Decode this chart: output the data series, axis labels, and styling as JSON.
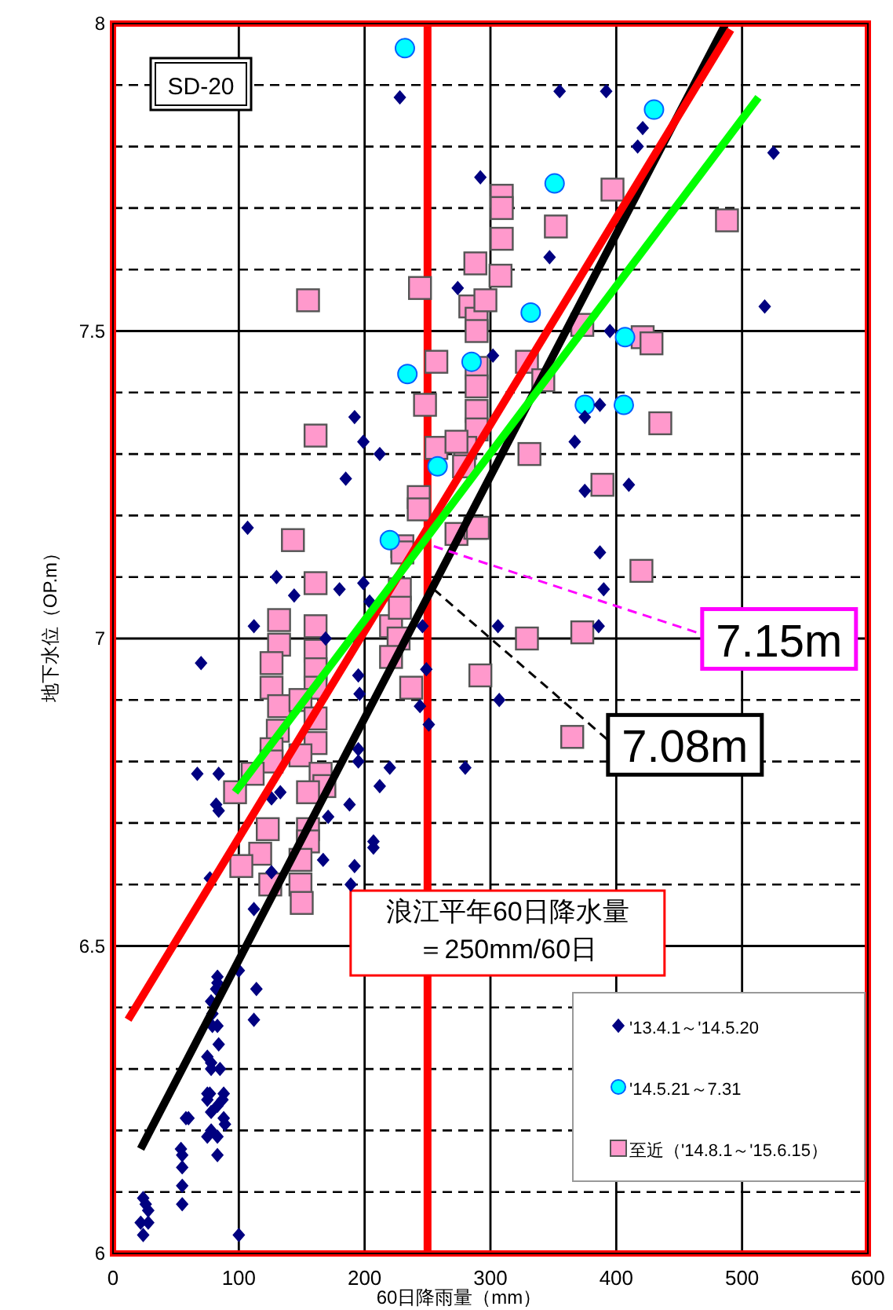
{
  "chart_data": {
    "type": "scatter",
    "title": "SD-20",
    "xlabel": "60日降雨量（mm）",
    "ylabel": "地下水位（OP.m）",
    "xlim": [
      0,
      600
    ],
    "ylim": [
      6.0,
      8.0
    ],
    "xticks": [
      0,
      100,
      200,
      300,
      400,
      500,
      600
    ],
    "yticks": [
      6.0,
      {
        "value": 6.1,
        "label": null
      },
      {
        "value": 6.2,
        "label": null
      },
      {
        "value": 6.3,
        "label": null
      },
      {
        "value": 6.4,
        "label": null
      },
      6.5,
      {
        "value": 6.6,
        "label": null
      },
      {
        "value": 6.7,
        "label": null
      },
      {
        "value": 6.8,
        "label": null
      },
      {
        "value": 6.9,
        "label": null
      },
      7.0,
      {
        "value": 7.1,
        "label": null
      },
      {
        "value": 7.2,
        "label": null
      },
      {
        "value": 7.3,
        "label": null
      },
      {
        "value": 7.4,
        "label": null
      },
      7.5,
      {
        "value": 7.6,
        "label": null
      },
      {
        "value": 7.7,
        "label": null
      },
      {
        "value": 7.8,
        "label": null
      },
      {
        "value": 7.9,
        "label": null
      },
      8.0
    ],
    "grid": true,
    "legend": "bottom right",
    "ref_lines": [
      {
        "axis": "x",
        "value": 250,
        "label": "浪江平年60日降水量＝250mm/60日",
        "color": "#ff0000"
      }
    ],
    "annotations": [
      {
        "text": "7.15m",
        "x": 250,
        "y": 7.15
      },
      {
        "text": "7.08m",
        "x": 250,
        "y": 7.08
      }
    ],
    "series": [
      {
        "name": "'13.4.1～'14.5.20",
        "marker": "diamond",
        "color": "#000080",
        "x": [
          228,
          292,
          274,
          192,
          199,
          212,
          185,
          107,
          130,
          144,
          180,
          199,
          112,
          246,
          169,
          204,
          355,
          392,
          421,
          417,
          525,
          347,
          518,
          395,
          302,
          375,
          387,
          367,
          375,
          410,
          387,
          390,
          306,
          386,
          307,
          280,
          70,
          193,
          195,
          196,
          249,
          244,
          251,
          195,
          195,
          220,
          212,
          67,
          84,
          82,
          84,
          126,
          133,
          188,
          171,
          207,
          207,
          167,
          192,
          189,
          126,
          77,
          112,
          100,
          83,
          83,
          114,
          82,
          78,
          79,
          112,
          79,
          83,
          84,
          75,
          78,
          85,
          78,
          75,
          77,
          88,
          75,
          87,
          83,
          78,
          88,
          58,
          60,
          89,
          78,
          75,
          83,
          54,
          55,
          83,
          55,
          55,
          55,
          24,
          26,
          28,
          22,
          28,
          24,
          100
        ],
        "values": [
          7.88,
          7.75,
          7.57,
          7.36,
          7.32,
          7.3,
          7.26,
          7.18,
          7.1,
          7.07,
          7.08,
          7.09,
          7.02,
          7.02,
          7.0,
          7.06,
          7.89,
          7.89,
          7.83,
          7.8,
          7.79,
          7.62,
          7.54,
          7.5,
          7.46,
          7.36,
          7.38,
          7.32,
          7.24,
          7.25,
          7.14,
          7.08,
          7.02,
          7.02,
          6.9,
          6.79,
          6.96,
          7.0,
          6.94,
          6.91,
          6.95,
          6.89,
          6.86,
          6.82,
          6.8,
          6.79,
          6.76,
          6.78,
          6.78,
          6.73,
          6.72,
          6.74,
          6.75,
          6.73,
          6.71,
          6.67,
          6.66,
          6.64,
          6.63,
          6.6,
          6.62,
          6.61,
          6.56,
          6.46,
          6.45,
          6.44,
          6.43,
          6.43,
          6.41,
          6.39,
          6.38,
          6.37,
          6.37,
          6.34,
          6.32,
          6.31,
          6.3,
          6.3,
          6.26,
          6.26,
          6.26,
          6.25,
          6.25,
          6.24,
          6.23,
          6.22,
          6.22,
          6.22,
          6.21,
          6.2,
          6.19,
          6.19,
          6.17,
          6.16,
          6.16,
          6.14,
          6.11,
          6.08,
          6.09,
          6.08,
          6.07,
          6.05,
          6.05,
          6.03,
          6.03
        ]
      },
      {
        "name": "'14.5.21～7.31",
        "marker": "circle",
        "color": "#00ffff",
        "x": [
          232,
          430,
          351,
          332,
          234,
          407,
          285,
          375,
          406,
          258,
          220
        ],
        "values": [
          7.96,
          7.86,
          7.74,
          7.53,
          7.43,
          7.49,
          7.45,
          7.38,
          7.38,
          7.28,
          7.16
        ]
      },
      {
        "name": "至近（'14.8.1～'15.6.15）",
        "marker": "square",
        "color": "#ff99cc",
        "x": [
          288,
          244,
          155,
          284,
          289,
          289,
          257,
          289,
          289,
          248,
          289,
          289,
          161,
          257,
          280,
          279,
          243,
          243,
          143,
          273,
          288,
          230,
          230,
          161,
          228,
          132,
          161,
          221,
          132,
          161,
          228,
          397,
          309,
          309,
          352,
          488,
          309,
          308,
          296,
          373,
          421,
          428,
          329,
          342,
          435,
          331,
          389,
          290,
          420,
          329,
          373,
          273,
          292,
          365,
          227,
          221,
          237,
          126,
          126,
          132,
          161,
          161,
          149,
          161,
          131,
          161,
          126,
          149,
          126,
          165,
          111,
          168,
          97,
          155,
          123,
          155,
          155,
          117,
          149,
          102,
          125,
          149,
          150
        ],
        "values": [
          7.61,
          7.57,
          7.55,
          7.54,
          7.52,
          7.5,
          7.45,
          7.44,
          7.41,
          7.38,
          7.37,
          7.34,
          7.33,
          7.31,
          7.31,
          7.28,
          7.23,
          7.21,
          7.16,
          7.17,
          7.18,
          7.15,
          7.14,
          7.09,
          7.08,
          7.03,
          7.02,
          7.02,
          6.99,
          6.98,
          7.05,
          7.73,
          7.72,
          7.7,
          7.67,
          7.68,
          7.65,
          7.59,
          7.55,
          7.51,
          7.49,
          7.48,
          7.45,
          7.42,
          7.35,
          7.3,
          7.25,
          7.18,
          7.11,
          7.0,
          7.01,
          7.32,
          6.94,
          6.84,
          7.0,
          6.97,
          6.92,
          6.96,
          6.92,
          6.89,
          6.95,
          6.92,
          6.9,
          6.87,
          6.85,
          6.83,
          6.82,
          6.81,
          6.8,
          6.78,
          6.78,
          6.76,
          6.75,
          6.75,
          6.69,
          6.69,
          6.67,
          6.65,
          6.64,
          6.63,
          6.6,
          6.6,
          6.57
        ]
      },
      {
        "type": "line",
        "color": "#000000",
        "x": [
          22,
          487
        ],
        "values": [
          6.17,
          8.0
        ]
      },
      {
        "type": "line",
        "color": "#ff0000",
        "x": [
          12,
          491
        ],
        "values": [
          6.38,
          7.99
        ]
      },
      {
        "type": "line",
        "color": "#00ff00",
        "x": [
          97,
          513
        ],
        "values": [
          6.75,
          7.88
        ]
      }
    ]
  }
}
